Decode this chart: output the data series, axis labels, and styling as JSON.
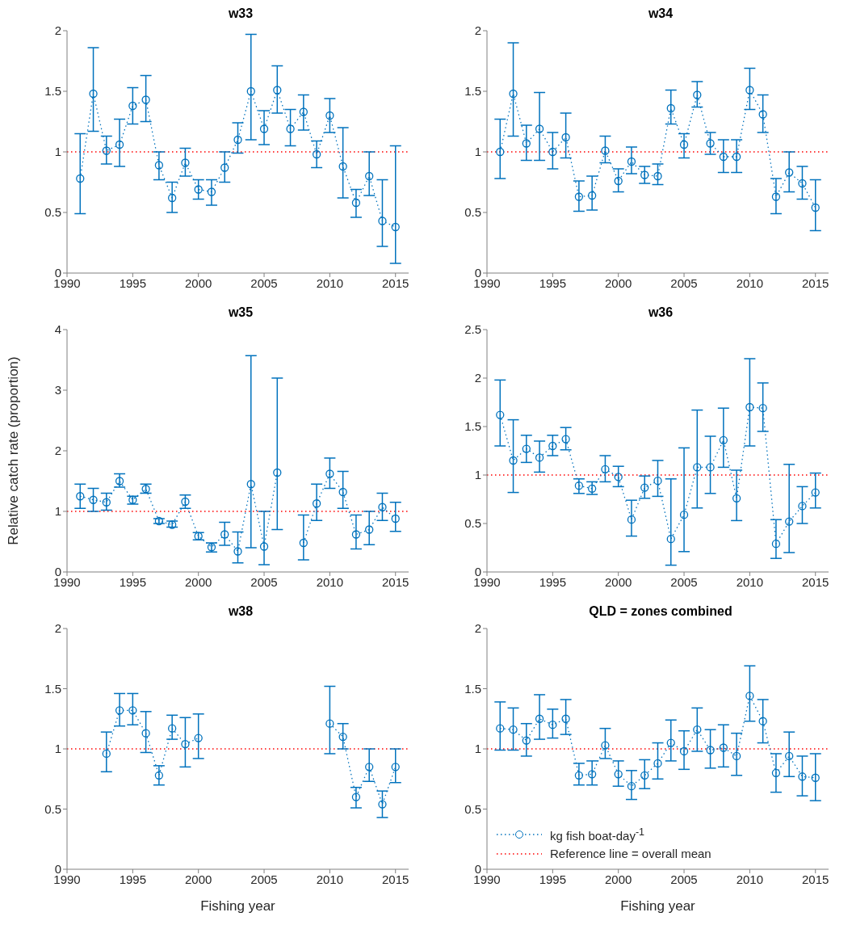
{
  "chart_data": [
    {
      "type": "line",
      "title": "w33",
      "x": [
        1991,
        1992,
        1993,
        1994,
        1995,
        1996,
        1997,
        1998,
        1999,
        2000,
        2001,
        2002,
        2003,
        2004,
        2005,
        2006,
        2007,
        2008,
        2009,
        2010,
        2011,
        2012,
        2013,
        2014,
        2015
      ],
      "xlim": [
        1990,
        2016
      ],
      "xticks": [
        1990,
        1995,
        2000,
        2005,
        2010,
        2015
      ],
      "ylim": [
        0,
        2
      ],
      "yticks": [
        0,
        0.5,
        1,
        1.5,
        2
      ],
      "grid": false,
      "legend": false,
      "marker": "circle",
      "line_style": "dotted",
      "series": [
        {
          "color": "#0072bd",
          "values": [
            0.78,
            1.48,
            1.01,
            1.06,
            1.38,
            1.43,
            0.89,
            0.62,
            0.91,
            0.69,
            0.67,
            0.87,
            1.1,
            1.5,
            1.19,
            1.51,
            1.19,
            1.33,
            0.98,
            1.3,
            0.88,
            0.58,
            0.8,
            0.43,
            0.38
          ],
          "errors": [
            [
              0.49,
              1.15
            ],
            [
              1.17,
              1.86
            ],
            [
              0.9,
              1.13
            ],
            [
              0.88,
              1.27
            ],
            [
              1.23,
              1.53
            ],
            [
              1.25,
              1.63
            ],
            [
              0.77,
              1.0
            ],
            [
              0.5,
              0.75
            ],
            [
              0.8,
              1.03
            ],
            [
              0.61,
              0.77
            ],
            [
              0.56,
              0.77
            ],
            [
              0.75,
              1.0
            ],
            [
              0.99,
              1.24
            ],
            [
              1.1,
              1.97
            ],
            [
              1.06,
              1.34
            ],
            [
              1.32,
              1.71
            ],
            [
              1.05,
              1.35
            ],
            [
              1.18,
              1.47
            ],
            [
              0.87,
              1.09
            ],
            [
              1.16,
              1.44
            ],
            [
              0.62,
              1.2
            ],
            [
              0.46,
              0.69
            ],
            [
              0.64,
              1.0
            ],
            [
              0.22,
              0.77
            ],
            [
              0.08,
              1.05
            ]
          ]
        }
      ],
      "ref_lines": [
        {
          "axis": "y",
          "value": 1,
          "color": "#ff0000",
          "line_style": "dotted"
        }
      ]
    },
    {
      "type": "line",
      "title": "w34",
      "x": [
        1991,
        1992,
        1993,
        1994,
        1995,
        1996,
        1997,
        1998,
        1999,
        2000,
        2001,
        2002,
        2003,
        2004,
        2005,
        2006,
        2007,
        2008,
        2009,
        2010,
        2011,
        2012,
        2013,
        2014,
        2015
      ],
      "xlim": [
        1990,
        2016
      ],
      "xticks": [
        1990,
        1995,
        2000,
        2005,
        2010,
        2015
      ],
      "ylim": [
        0,
        2
      ],
      "yticks": [
        0,
        0.5,
        1,
        1.5,
        2
      ],
      "grid": false,
      "legend": false,
      "marker": "circle",
      "line_style": "dotted",
      "series": [
        {
          "color": "#0072bd",
          "values": [
            1.0,
            1.48,
            1.07,
            1.19,
            1.0,
            1.12,
            0.63,
            0.64,
            1.01,
            0.76,
            0.92,
            0.81,
            0.8,
            1.36,
            1.06,
            1.47,
            1.07,
            0.96,
            0.96,
            1.51,
            1.31,
            0.63,
            0.83,
            0.74,
            0.54
          ],
          "errors": [
            [
              0.78,
              1.27
            ],
            [
              1.13,
              1.9
            ],
            [
              0.93,
              1.22
            ],
            [
              0.93,
              1.49
            ],
            [
              0.86,
              1.16
            ],
            [
              0.95,
              1.32
            ],
            [
              0.51,
              0.76
            ],
            [
              0.52,
              0.8
            ],
            [
              0.91,
              1.13
            ],
            [
              0.67,
              0.86
            ],
            [
              0.82,
              1.04
            ],
            [
              0.74,
              0.88
            ],
            [
              0.73,
              0.9
            ],
            [
              1.23,
              1.51
            ],
            [
              0.95,
              1.15
            ],
            [
              1.37,
              1.58
            ],
            [
              0.98,
              1.16
            ],
            [
              0.83,
              1.1
            ],
            [
              0.83,
              1.1
            ],
            [
              1.35,
              1.69
            ],
            [
              1.16,
              1.47
            ],
            [
              0.49,
              0.78
            ],
            [
              0.67,
              1.0
            ],
            [
              0.61,
              0.88
            ],
            [
              0.35,
              0.77
            ]
          ]
        }
      ],
      "ref_lines": [
        {
          "axis": "y",
          "value": 1,
          "color": "#ff0000",
          "line_style": "dotted"
        }
      ]
    },
    {
      "type": "line",
      "title": "w35",
      "ylabel": "Relative catch rate (proportion)",
      "x": [
        1991,
        1992,
        1993,
        1994,
        1995,
        1996,
        1997,
        1998,
        1999,
        2000,
        2001,
        2002,
        2003,
        2004,
        2005,
        2006,
        2007,
        2008,
        2009,
        2010,
        2011,
        2012,
        2013,
        2014,
        2015
      ],
      "xlim": [
        1990,
        2016
      ],
      "xticks": [
        1990,
        1995,
        2000,
        2005,
        2010,
        2015
      ],
      "ylim": [
        0,
        4
      ],
      "yticks": [
        0,
        1,
        2,
        3,
        4
      ],
      "grid": false,
      "legend": false,
      "marker": "circle",
      "line_style": "dotted",
      "series": [
        {
          "color": "#0072bd",
          "values": [
            1.25,
            1.19,
            1.15,
            1.5,
            1.19,
            1.37,
            0.84,
            0.78,
            1.16,
            0.59,
            0.41,
            0.62,
            0.34,
            1.45,
            0.42,
            1.64,
            null,
            0.48,
            1.13,
            1.62,
            1.32,
            0.62,
            0.7,
            1.07,
            0.88
          ],
          "errors": [
            [
              1.05,
              1.45
            ],
            [
              1.0,
              1.38
            ],
            [
              1.02,
              1.3
            ],
            [
              1.4,
              1.62
            ],
            [
              1.12,
              1.25
            ],
            [
              1.3,
              1.45
            ],
            [
              0.8,
              0.88
            ],
            [
              0.74,
              0.84
            ],
            [
              1.05,
              1.27
            ],
            [
              0.53,
              0.65
            ],
            [
              0.33,
              0.48
            ],
            [
              0.44,
              0.82
            ],
            [
              0.15,
              0.66
            ],
            [
              0.4,
              3.57
            ],
            [
              0.12,
              1.0
            ],
            [
              0.7,
              3.2
            ],
            null,
            [
              0.2,
              0.94
            ],
            [
              0.85,
              1.45
            ],
            [
              1.38,
              1.88
            ],
            [
              1.05,
              1.66
            ],
            [
              0.38,
              0.94
            ],
            [
              0.45,
              1.0
            ],
            [
              0.85,
              1.3
            ],
            [
              0.67,
              1.15
            ]
          ]
        }
      ],
      "ref_lines": [
        {
          "axis": "y",
          "value": 1,
          "color": "#ff0000",
          "line_style": "dotted"
        }
      ]
    },
    {
      "type": "line",
      "title": "w36",
      "x": [
        1991,
        1992,
        1993,
        1994,
        1995,
        1996,
        1997,
        1998,
        1999,
        2000,
        2001,
        2002,
        2003,
        2004,
        2005,
        2006,
        2007,
        2008,
        2009,
        2010,
        2011,
        2012,
        2013,
        2014,
        2015
      ],
      "xlim": [
        1990,
        2016
      ],
      "xticks": [
        1990,
        1995,
        2000,
        2005,
        2010,
        2015
      ],
      "ylim": [
        0,
        2.5
      ],
      "yticks": [
        0,
        0.5,
        1,
        1.5,
        2,
        2.5
      ],
      "grid": false,
      "legend": false,
      "marker": "circle",
      "line_style": "dotted",
      "series": [
        {
          "color": "#0072bd",
          "values": [
            1.62,
            1.15,
            1.27,
            1.18,
            1.3,
            1.37,
            0.89,
            0.86,
            1.06,
            0.98,
            0.54,
            0.87,
            0.94,
            0.34,
            0.59,
            1.08,
            1.08,
            1.36,
            0.76,
            1.7,
            1.69,
            0.29,
            0.52,
            0.68,
            0.82
          ],
          "errors": [
            [
              1.3,
              1.98
            ],
            [
              0.82,
              1.57
            ],
            [
              1.13,
              1.41
            ],
            [
              1.03,
              1.35
            ],
            [
              1.2,
              1.41
            ],
            [
              1.26,
              1.49
            ],
            [
              0.81,
              0.96
            ],
            [
              0.8,
              0.93
            ],
            [
              0.93,
              1.2
            ],
            [
              0.88,
              1.09
            ],
            [
              0.37,
              0.74
            ],
            [
              0.76,
              0.99
            ],
            [
              0.78,
              1.15
            ],
            [
              0.07,
              0.96
            ],
            [
              0.21,
              1.28
            ],
            [
              0.66,
              1.67
            ],
            [
              0.81,
              1.4
            ],
            [
              1.08,
              1.69
            ],
            [
              0.53,
              1.05
            ],
            [
              1.3,
              2.2
            ],
            [
              1.45,
              1.95
            ],
            [
              0.14,
              0.54
            ],
            [
              0.2,
              1.11
            ],
            [
              0.5,
              0.88
            ],
            [
              0.66,
              1.02
            ]
          ]
        }
      ],
      "ref_lines": [
        {
          "axis": "y",
          "value": 1,
          "color": "#ff0000",
          "line_style": "dotted"
        }
      ]
    },
    {
      "type": "line",
      "title": "w38",
      "xlabel": "Fishing year",
      "xlim": [
        1990,
        2016
      ],
      "xticks": [
        1990,
        1995,
        2000,
        2005,
        2010,
        2015
      ],
      "ylim": [
        0,
        2
      ],
      "yticks": [
        0,
        0.5,
        1,
        1.5,
        2
      ],
      "grid": false,
      "legend": false,
      "marker": "circle",
      "line_style": "dotted",
      "series": [
        {
          "color": "#0072bd",
          "x": [
            1993,
            1994,
            1995,
            1996,
            1997,
            1998,
            1999,
            2000
          ],
          "values": [
            0.96,
            1.32,
            1.32,
            1.13,
            0.78,
            1.17,
            1.04,
            1.09
          ],
          "errors": [
            [
              0.81,
              1.14
            ],
            [
              1.19,
              1.46
            ],
            [
              1.2,
              1.46
            ],
            [
              0.97,
              1.31
            ],
            [
              0.7,
              0.86
            ],
            [
              1.08,
              1.28
            ],
            [
              0.85,
              1.26
            ],
            [
              0.92,
              1.29
            ]
          ]
        },
        {
          "color": "#0072bd",
          "x": [
            2010,
            2011,
            2012,
            2013,
            2014,
            2015
          ],
          "values": [
            1.21,
            1.1,
            0.6,
            0.85,
            0.54,
            0.85
          ],
          "errors": [
            [
              0.96,
              1.52
            ],
            [
              1.0,
              1.21
            ],
            [
              0.51,
              0.68
            ],
            [
              0.73,
              1.0
            ],
            [
              0.43,
              0.65
            ],
            [
              0.72,
              1.0
            ]
          ]
        }
      ],
      "ref_lines": [
        {
          "axis": "y",
          "value": 1,
          "color": "#ff0000",
          "line_style": "dotted"
        }
      ]
    },
    {
      "type": "line",
      "title": "QLD = zones combined",
      "xlabel": "Fishing year",
      "x": [
        1991,
        1992,
        1993,
        1994,
        1995,
        1996,
        1997,
        1998,
        1999,
        2000,
        2001,
        2002,
        2003,
        2004,
        2005,
        2006,
        2007,
        2008,
        2009,
        2010,
        2011,
        2012,
        2013,
        2014,
        2015
      ],
      "xlim": [
        1990,
        2016
      ],
      "xticks": [
        1990,
        1995,
        2000,
        2005,
        2010,
        2015
      ],
      "ylim": [
        0,
        2
      ],
      "yticks": [
        0,
        0.5,
        1,
        1.5,
        2
      ],
      "grid": false,
      "legend": "bottom left",
      "marker": "circle",
      "line_style": "dotted",
      "series": [
        {
          "name": "kg fish boat-day$^{-1}$",
          "color": "#0072bd",
          "values": [
            1.17,
            1.16,
            1.07,
            1.25,
            1.2,
            1.25,
            0.78,
            0.79,
            1.03,
            0.79,
            0.69,
            0.78,
            0.88,
            1.05,
            0.98,
            1.16,
            0.99,
            1.01,
            0.94,
            1.44,
            1.23,
            0.8,
            0.94,
            0.77,
            0.76
          ],
          "errors": [
            [
              0.99,
              1.39
            ],
            [
              0.99,
              1.34
            ],
            [
              0.94,
              1.21
            ],
            [
              1.08,
              1.45
            ],
            [
              1.09,
              1.33
            ],
            [
              1.12,
              1.41
            ],
            [
              0.7,
              0.88
            ],
            [
              0.7,
              0.9
            ],
            [
              0.92,
              1.17
            ],
            [
              0.69,
              0.9
            ],
            [
              0.58,
              0.82
            ],
            [
              0.67,
              0.91
            ],
            [
              0.75,
              1.05
            ],
            [
              0.9,
              1.24
            ],
            [
              0.83,
              1.15
            ],
            [
              0.98,
              1.34
            ],
            [
              0.84,
              1.16
            ],
            [
              0.85,
              1.2
            ],
            [
              0.78,
              1.13
            ],
            [
              1.23,
              1.69
            ],
            [
              1.05,
              1.41
            ],
            [
              0.64,
              0.96
            ],
            [
              0.77,
              1.14
            ],
            [
              0.61,
              0.94
            ],
            [
              0.57,
              0.96
            ]
          ]
        }
      ],
      "ref_lines": [
        {
          "axis": "y",
          "value": 1,
          "label": "Reference line = overall mean",
          "color": "#ff0000",
          "line_style": "dotted"
        }
      ]
    }
  ]
}
